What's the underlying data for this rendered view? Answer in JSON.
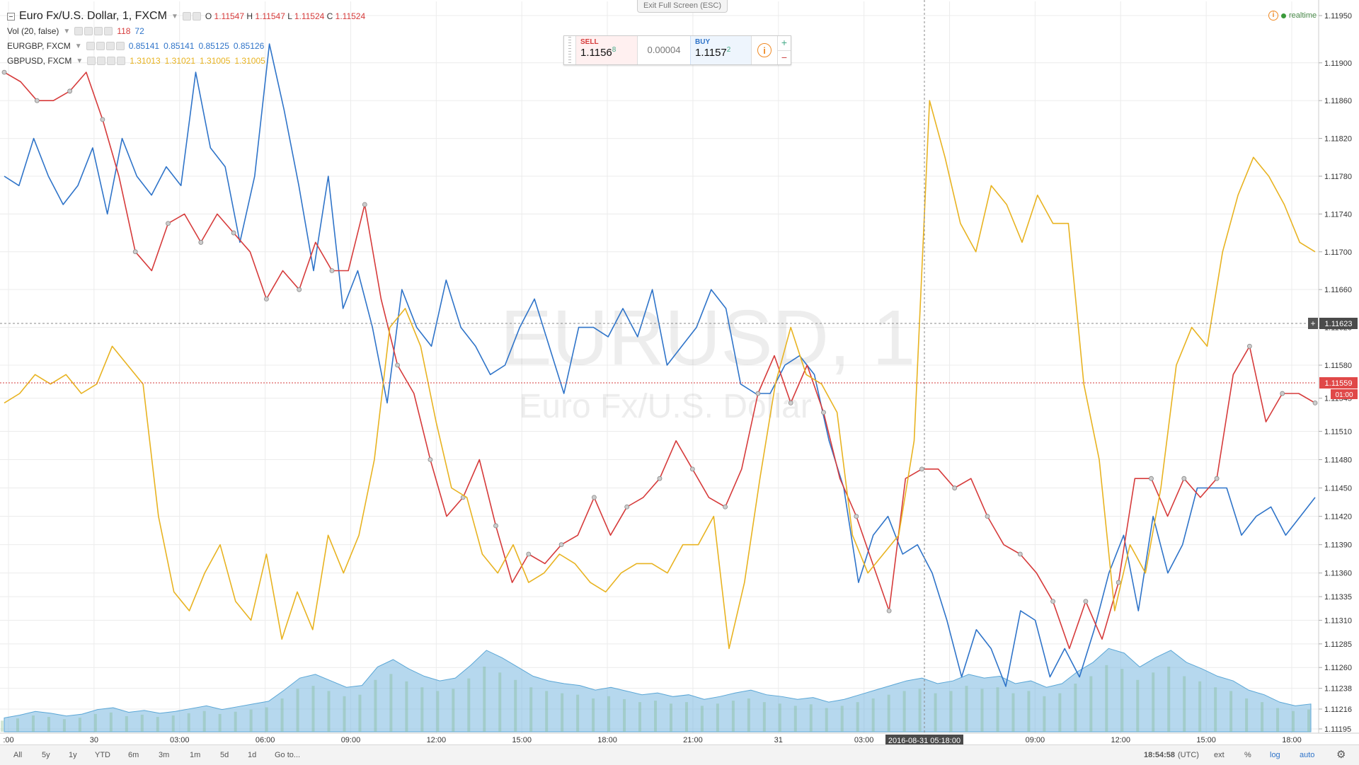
{
  "legend": {
    "main": {
      "name": "Euro Fx/U.S. Dollar, 1, FXCM",
      "o_label": "O",
      "o": "1.11547",
      "h_label": "H",
      "h": "1.11547",
      "l_label": "L",
      "l": "1.11524",
      "c_label": "C",
      "c": "1.11524"
    },
    "vol": {
      "name": "Vol (20, false)",
      "v1": "118",
      "v2": "72"
    },
    "eurgbp": {
      "name": "EURGBP, FXCM",
      "v1": "0.85141",
      "v2": "0.85141",
      "v3": "0.85125",
      "v4": "0.85126"
    },
    "gbpusd": {
      "name": "GBPUSD, FXCM",
      "v1": "1.31013",
      "v2": "1.31021",
      "v3": "1.31005",
      "v4": "1.31005"
    }
  },
  "fullscreen_label": "Exit Full Screen (ESC)",
  "trade_panel": {
    "sell_label": "SELL",
    "sell_big": "1.1156",
    "sell_small": "8",
    "spread": "0.00004",
    "buy_label": "BUY",
    "buy_big": "1.1157",
    "buy_small": "2",
    "info": "i",
    "plus": "+",
    "minus": "−"
  },
  "realtime": {
    "label": "realtime",
    "icon": "info-icon"
  },
  "watermark": {
    "symbol": "EURUSD, 1",
    "description": "Euro Fx/U.S. Dollar"
  },
  "crosshair": {
    "time_label": "2016-08-31 05:18:00",
    "price_label": "1.11623",
    "plus": "+"
  },
  "price_badge": {
    "value": "1.11559",
    "countdown": "01:00"
  },
  "bottom_bar": {
    "ranges": [
      "All",
      "5y",
      "1y",
      "YTD",
      "6m",
      "3m",
      "1m",
      "5d",
      "1d",
      "Go to..."
    ],
    "time": "18:54:58",
    "tz": "(UTC)",
    "ext": "ext",
    "pct": "%",
    "log": "log",
    "auto": "auto",
    "gear": "gear-icon"
  },
  "colors": {
    "eurusd": "#2f74c9",
    "eurgbp": "#d63b3b",
    "gbpusd": "#e8b321",
    "volume": "#7ab8e0",
    "grid": "#ececec"
  },
  "chart_data": {
    "type": "line",
    "title": "Euro Fx/U.S. Dollar, 1, FXCM",
    "y_axis_ticks": [
      "1.11950",
      "1.11900",
      "1.11860",
      "1.11820",
      "1.11780",
      "1.11740",
      "1.11700",
      "1.11660",
      "1.11620",
      "1.11580",
      "1.11545",
      "1.11510",
      "1.11480",
      "1.11450",
      "1.11420",
      "1.11390",
      "1.11360",
      "1.11335",
      "1.11310",
      "1.11285",
      "1.11260",
      "1.11238",
      "1.11216",
      "1.11195"
    ],
    "ylim": [
      1.11195,
      1.1195
    ],
    "x_axis_ticks": [
      ":00",
      "30",
      "03:00",
      "06:00",
      "09:00",
      "12:00",
      "15:00",
      "18:00",
      "21:00",
      "31",
      "03:00",
      "06:00",
      "09:00",
      "12:00",
      "15:00",
      "18:00"
    ],
    "legend_placement": "top-left",
    "series": [
      {
        "name": "EURUSD, FXCM",
        "values": [
          1.1178,
          1.1177,
          1.1182,
          1.1178,
          1.1175,
          1.1177,
          1.1181,
          1.1174,
          1.1182,
          1.1178,
          1.1176,
          1.1179,
          1.1177,
          1.1189,
          1.1181,
          1.1179,
          1.1171,
          1.1178,
          1.1192,
          1.1185,
          1.1177,
          1.1168,
          1.1178,
          1.1164,
          1.1168,
          1.1162,
          1.1154,
          1.1166,
          1.1162,
          1.116,
          1.1167,
          1.1162,
          1.116,
          1.1157,
          1.1158,
          1.1162,
          1.1165,
          1.116,
          1.1155,
          1.1162,
          1.1162,
          1.1161,
          1.1164,
          1.1161,
          1.1166,
          1.1158,
          1.116,
          1.1162,
          1.1166,
          1.1164,
          1.1156,
          1.1155,
          1.1155,
          1.1158,
          1.1159,
          1.1157,
          1.115,
          1.1145,
          1.1135,
          1.114,
          1.1142,
          1.1138,
          1.1139,
          1.1136,
          1.1131,
          1.1125,
          1.113,
          1.1128,
          1.1124,
          1.1132,
          1.1131,
          1.1125,
          1.1128,
          1.1125,
          1.113,
          1.1136,
          1.114,
          1.1132,
          1.1142,
          1.1136,
          1.1139,
          1.1145,
          1.1145,
          1.1145,
          1.114,
          1.1142,
          1.1143,
          1.114,
          1.1142,
          1.1144
        ]
      },
      {
        "name": "EURGBP, FXCM",
        "values": [
          1.1189,
          1.1188,
          1.1186,
          1.1186,
          1.1187,
          1.1189,
          1.1184,
          1.1178,
          1.117,
          1.1168,
          1.1173,
          1.1174,
          1.1171,
          1.1174,
          1.1172,
          1.117,
          1.1165,
          1.1168,
          1.1166,
          1.1171,
          1.1168,
          1.1168,
          1.1175,
          1.1165,
          1.1158,
          1.1155,
          1.1148,
          1.1142,
          1.1144,
          1.1148,
          1.1141,
          1.1135,
          1.1138,
          1.1137,
          1.1139,
          1.114,
          1.1144,
          1.114,
          1.1143,
          1.1144,
          1.1146,
          1.115,
          1.1147,
          1.1144,
          1.1143,
          1.1147,
          1.1155,
          1.1159,
          1.1154,
          1.1158,
          1.1153,
          1.1146,
          1.1142,
          1.1137,
          1.1132,
          1.1146,
          1.1147,
          1.1147,
          1.1145,
          1.1146,
          1.1142,
          1.1139,
          1.1138,
          1.1136,
          1.1133,
          1.1128,
          1.1133,
          1.1129,
          1.1135,
          1.1146,
          1.1146,
          1.1142,
          1.1146,
          1.1144,
          1.1146,
          1.1157,
          1.116,
          1.1152,
          1.1155,
          1.1155,
          1.1154
        ]
      },
      {
        "name": "GBPUSD, FXCM",
        "values": [
          1.1154,
          1.1155,
          1.1157,
          1.1156,
          1.1157,
          1.1155,
          1.1156,
          1.116,
          1.1158,
          1.1156,
          1.1142,
          1.1134,
          1.1132,
          1.1136,
          1.1139,
          1.1133,
          1.1131,
          1.1138,
          1.1129,
          1.1134,
          1.113,
          1.114,
          1.1136,
          1.114,
          1.1148,
          1.1162,
          1.1164,
          1.116,
          1.1152,
          1.1145,
          1.1144,
          1.1138,
          1.1136,
          1.1139,
          1.1135,
          1.1136,
          1.1138,
          1.1137,
          1.1135,
          1.1134,
          1.1136,
          1.1137,
          1.1137,
          1.1136,
          1.1139,
          1.1139,
          1.1142,
          1.1128,
          1.1135,
          1.1146,
          1.1156,
          1.1162,
          1.1157,
          1.1156,
          1.1153,
          1.114,
          1.1136,
          1.1138,
          1.114,
          1.115,
          1.1186,
          1.118,
          1.1173,
          1.117,
          1.1177,
          1.1175,
          1.1171,
          1.1176,
          1.1173,
          1.1173,
          1.1156,
          1.1148,
          1.1132,
          1.1139,
          1.1136,
          1.1145,
          1.1158,
          1.1162,
          1.116,
          1.117,
          1.1176,
          1.118,
          1.1178,
          1.1175,
          1.1171,
          1.117
        ]
      }
    ],
    "volume_ylim": [
      0,
      130
    ],
    "volume": [
      15,
      18,
      22,
      20,
      17,
      19,
      24,
      26,
      21,
      23,
      20,
      22,
      25,
      28,
      24,
      27,
      30,
      33,
      45,
      58,
      62,
      55,
      48,
      50,
      70,
      78,
      68,
      60,
      55,
      58,
      72,
      88,
      80,
      70,
      60,
      55,
      52,
      50,
      45,
      48,
      44,
      40,
      42,
      38,
      40,
      35,
      38,
      42,
      45,
      40,
      38,
      35,
      37,
      32,
      35,
      40,
      45,
      50,
      55,
      58,
      52,
      55,
      62,
      58,
      60,
      52,
      55,
      48,
      52,
      65,
      75,
      90,
      85,
      70,
      80,
      88,
      75,
      68,
      60,
      55,
      45,
      40,
      32,
      28,
      30
    ]
  }
}
